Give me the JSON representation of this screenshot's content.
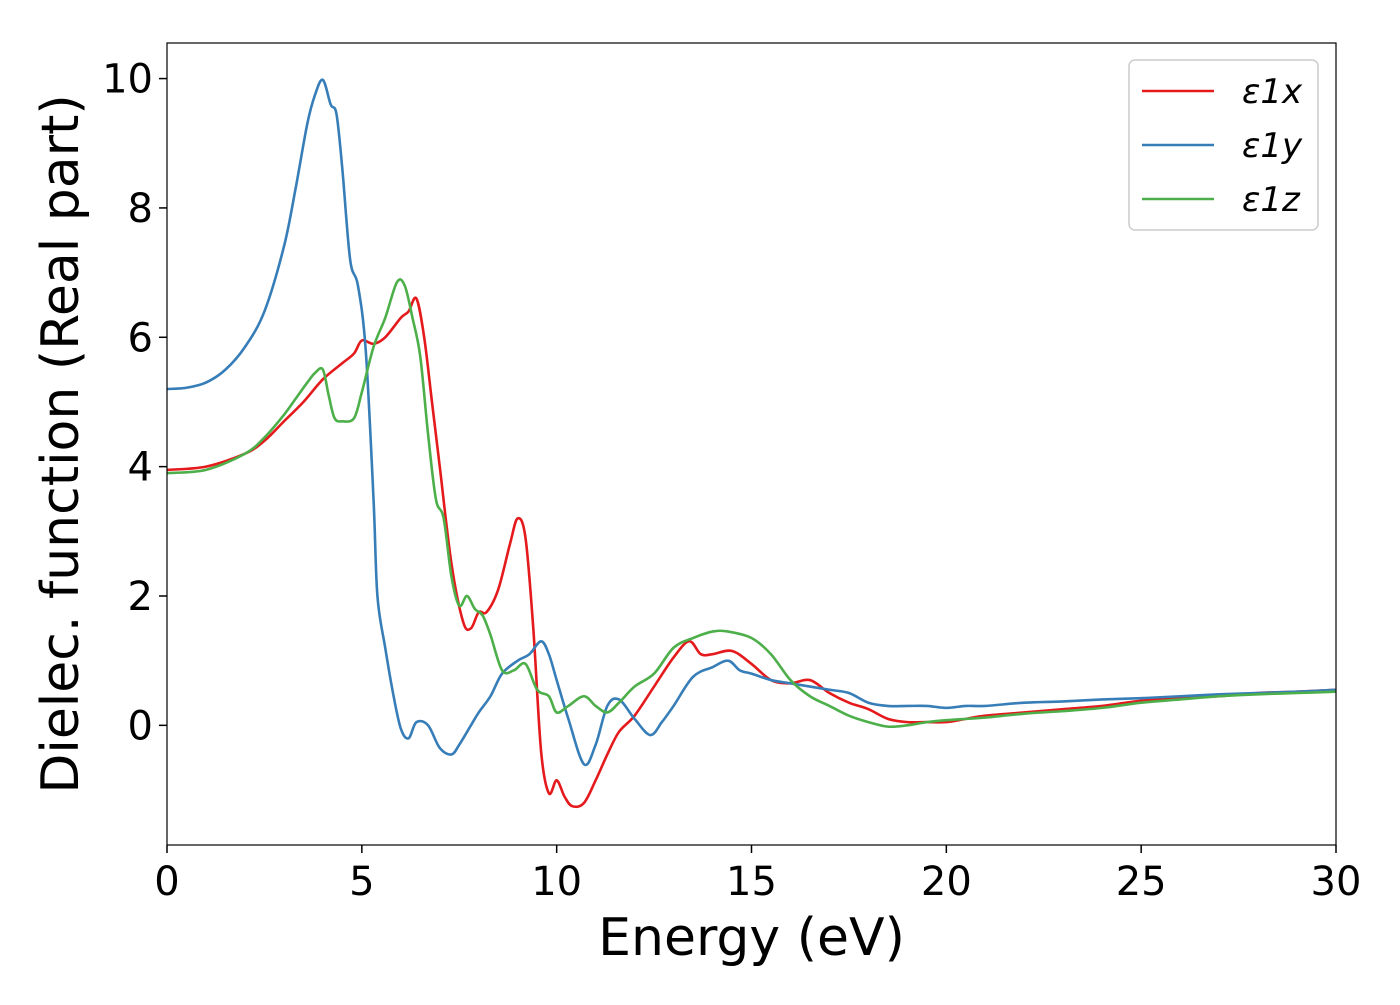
{
  "chart_data": {
    "type": "line",
    "title": "",
    "xlabel": "Energy (eV)",
    "ylabel": "Dielec. function (Real part)",
    "xlim": [
      0,
      30
    ],
    "ylim": [
      -1.85,
      10.55
    ],
    "xticks": [
      0,
      5,
      10,
      15,
      20,
      25,
      30
    ],
    "xtick_labels": [
      "0",
      "5",
      "10",
      "15",
      "20",
      "25",
      "30"
    ],
    "yticks": [
      0,
      2,
      4,
      6,
      8,
      10
    ],
    "ytick_labels": [
      "0",
      "2",
      "4",
      "6",
      "8",
      "10"
    ],
    "grid": false,
    "legend_position": "top-right",
    "series": [
      {
        "name": "ε1x",
        "color": "#e41a1c",
        "x": [
          0,
          1,
          2,
          2.5,
          3,
          3.5,
          4,
          4.5,
          4.8,
          5.0,
          5.3,
          5.6,
          6.0,
          6.2,
          6.4,
          6.6,
          6.8,
          7.0,
          7.3,
          7.6,
          7.8,
          8.0,
          8.2,
          8.5,
          8.8,
          9.0,
          9.2,
          9.4,
          9.6,
          9.8,
          10.0,
          10.2,
          10.4,
          10.7,
          11.0,
          11.3,
          11.6,
          12.0,
          12.5,
          13.0,
          13.4,
          13.7,
          14.0,
          14.5,
          15.0,
          15.5,
          16.0,
          16.5,
          17.0,
          17.5,
          18.0,
          18.5,
          19.0,
          19.5,
          20.0,
          20.5,
          21.0,
          22.0,
          23.0,
          24.0,
          25.0,
          26.0,
          27.0,
          28.0,
          29.0,
          30.0
        ],
        "y": [
          3.95,
          4.0,
          4.2,
          4.4,
          4.7,
          5.0,
          5.35,
          5.6,
          5.75,
          5.95,
          5.9,
          6.0,
          6.3,
          6.4,
          6.6,
          6.0,
          5.0,
          4.0,
          2.5,
          1.6,
          1.5,
          1.75,
          1.75,
          2.1,
          2.8,
          3.2,
          2.9,
          1.5,
          -0.4,
          -1.05,
          -0.85,
          -1.1,
          -1.25,
          -1.2,
          -0.85,
          -0.45,
          -0.1,
          0.15,
          0.6,
          1.05,
          1.3,
          1.1,
          1.1,
          1.15,
          0.95,
          0.7,
          0.65,
          0.7,
          0.5,
          0.35,
          0.25,
          0.1,
          0.05,
          0.05,
          0.05,
          0.1,
          0.15,
          0.2,
          0.25,
          0.3,
          0.38,
          0.42,
          0.45,
          0.5,
          0.52,
          0.55
        ]
      },
      {
        "name": "ε1y",
        "color": "#377eb8",
        "x": [
          0,
          0.5,
          1,
          1.5,
          2,
          2.5,
          3,
          3.3,
          3.6,
          3.8,
          4.0,
          4.2,
          4.35,
          4.5,
          4.7,
          4.9,
          5.1,
          5.3,
          5.4,
          5.6,
          5.8,
          6.0,
          6.2,
          6.4,
          6.7,
          7.0,
          7.3,
          7.5,
          7.8,
          8.0,
          8.3,
          8.6,
          9.0,
          9.3,
          9.6,
          9.8,
          10.0,
          10.3,
          10.7,
          11.0,
          11.3,
          11.6,
          12.0,
          12.4,
          12.7,
          13.0,
          13.5,
          14.0,
          14.4,
          14.7,
          15.0,
          15.5,
          16.0,
          16.5,
          17.0,
          17.5,
          18.0,
          18.5,
          19.0,
          19.5,
          20.0,
          20.5,
          21.0,
          22.0,
          23.0,
          24.0,
          25.0,
          26.0,
          27.0,
          28.0,
          29.0,
          30.0
        ],
        "y": [
          5.2,
          5.22,
          5.3,
          5.5,
          5.85,
          6.4,
          7.4,
          8.3,
          9.3,
          9.75,
          9.98,
          9.6,
          9.45,
          8.6,
          7.2,
          6.8,
          5.8,
          3.5,
          2.0,
          1.2,
          0.5,
          -0.05,
          -0.2,
          0.05,
          0.0,
          -0.35,
          -0.45,
          -0.3,
          0.0,
          0.2,
          0.45,
          0.8,
          1.0,
          1.1,
          1.3,
          1.1,
          0.7,
          0.1,
          -0.6,
          -0.3,
          0.3,
          0.4,
          0.1,
          -0.15,
          0.05,
          0.3,
          0.75,
          0.9,
          1.0,
          0.85,
          0.8,
          0.7,
          0.65,
          0.6,
          0.55,
          0.5,
          0.35,
          0.3,
          0.3,
          0.3,
          0.27,
          0.3,
          0.3,
          0.35,
          0.37,
          0.4,
          0.42,
          0.45,
          0.48,
          0.5,
          0.52,
          0.55
        ]
      },
      {
        "name": "ε1z",
        "color": "#4daf4a",
        "x": [
          0,
          1,
          2,
          2.5,
          3,
          3.3,
          3.6,
          3.8,
          4.0,
          4.15,
          4.3,
          4.5,
          4.8,
          5.0,
          5.3,
          5.6,
          5.9,
          6.1,
          6.3,
          6.5,
          6.7,
          6.9,
          7.1,
          7.3,
          7.5,
          7.7,
          7.9,
          8.1,
          8.3,
          8.6,
          8.9,
          9.2,
          9.5,
          9.8,
          10.0,
          10.3,
          10.7,
          11.0,
          11.3,
          11.6,
          12.0,
          12.5,
          13.0,
          13.5,
          14.0,
          14.4,
          15.0,
          15.5,
          16.0,
          16.5,
          17.0,
          17.5,
          18.0,
          18.5,
          19.0,
          19.5,
          20.0,
          20.5,
          21.0,
          22.0,
          23.0,
          24.0,
          25.0,
          26.0,
          27.0,
          28.0,
          29.0,
          30.0
        ],
        "y": [
          3.9,
          3.95,
          4.2,
          4.45,
          4.8,
          5.05,
          5.3,
          5.45,
          5.5,
          5.1,
          4.75,
          4.7,
          4.75,
          5.15,
          5.85,
          6.3,
          6.85,
          6.8,
          6.3,
          5.7,
          4.5,
          3.5,
          3.2,
          2.3,
          1.85,
          2.0,
          1.8,
          1.7,
          1.4,
          0.85,
          0.85,
          0.95,
          0.55,
          0.45,
          0.2,
          0.3,
          0.45,
          0.3,
          0.2,
          0.35,
          0.6,
          0.8,
          1.2,
          1.35,
          1.45,
          1.45,
          1.35,
          1.1,
          0.7,
          0.45,
          0.3,
          0.15,
          0.05,
          -0.02,
          0.0,
          0.05,
          0.08,
          0.1,
          0.12,
          0.18,
          0.22,
          0.27,
          0.35,
          0.4,
          0.45,
          0.48,
          0.5,
          0.52
        ]
      }
    ]
  }
}
